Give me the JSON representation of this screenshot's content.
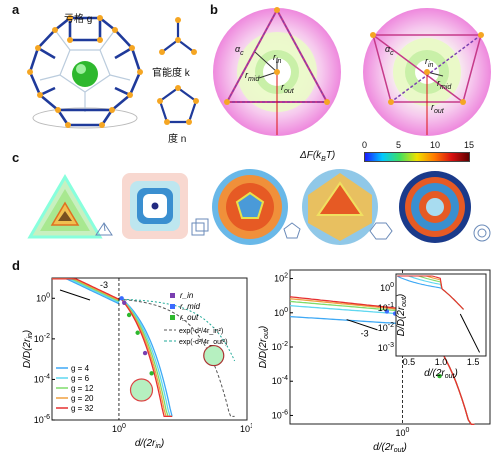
{
  "panel_labels": {
    "a": "a",
    "b": "b",
    "c": "c",
    "d": "d"
  },
  "panel_a": {
    "label_g": "亏格 g",
    "label_k": "官能度 k",
    "label_n": "度 n"
  },
  "panel_b": {
    "alpha": "α",
    "alpha_sub": "c",
    "r_in": "r",
    "r_in_sub": "in",
    "r_mid": "r",
    "r_mid_sub": "mid",
    "r_out": "r",
    "r_out_sub": "out"
  },
  "colorbar": {
    "title": "ΔF(k",
    "title_sub": "B",
    "title_end": "T)",
    "ticks": [
      "0",
      "5",
      "10",
      "15"
    ],
    "colors": [
      "#1a1aff",
      "#00c8ff",
      "#40e060",
      "#f0e000",
      "#ff7a00",
      "#d81010",
      "#600000"
    ]
  },
  "panel_c": {
    "shapes": [
      "tetrahedron-icon",
      "cube-icon",
      "dodecahedron-icon",
      "icosahedron-icon",
      "fullerene-icon"
    ]
  },
  "chart_data": [
    {
      "type": "line",
      "xlabel": "d/(2r",
      "xlabel_sub": "in",
      "xlabel_end": ")",
      "ylabel": "D/D(2r",
      "ylabel_sub": "in",
      "ylabel_end": ")",
      "xscale": "log",
      "yscale": "log",
      "xlim": [
        0.3,
        10
      ],
      "ylim": [
        1e-06,
        10
      ],
      "x_ticks": [
        "10^0",
        "10^1"
      ],
      "y_ticks": [
        "10^0",
        "10^-2",
        "10^-4",
        "10^-6"
      ],
      "slope_annotation": "-3",
      "legend_markers": [
        "r_in",
        "r_mid",
        "r_out"
      ],
      "legend_fits": [
        "exp(-d²/4r_in²)",
        "exp(-d²/4r_out²)"
      ],
      "series": [
        {
          "name": "g = 4",
          "color": "#3fa9f5"
        },
        {
          "name": "g = 6",
          "color": "#5fd7f0"
        },
        {
          "name": "g = 12",
          "color": "#7fdc6a"
        },
        {
          "name": "g = 20",
          "color": "#f0a040"
        },
        {
          "name": "g = 32",
          "color": "#e63030"
        }
      ]
    },
    {
      "type": "line",
      "xlabel": "d/(2r",
      "xlabel_sub": "out",
      "xlabel_end": ")",
      "ylabel": "D/D(2r",
      "ylabel_sub": "out",
      "ylabel_end": ")",
      "xscale": "log",
      "yscale": "log",
      "x_ticks": [
        "10^0"
      ],
      "y_ticks": [
        "10^2",
        "10^0",
        "10^-2",
        "10^-4",
        "10^-6"
      ],
      "slope_annotation": "-3",
      "inset": {
        "xlabel": "d/(2r",
        "xlabel_sub": "out",
        "xlabel_end": ")",
        "ylabel": "D/D(2r",
        "ylabel_sub": "out",
        "ylabel_end": ")",
        "x_ticks": [
          "0.5",
          "1.0",
          "1.5"
        ],
        "y_ticks": [
          "10^0",
          "10^-1",
          "10^-2",
          "10^-3"
        ]
      }
    }
  ]
}
